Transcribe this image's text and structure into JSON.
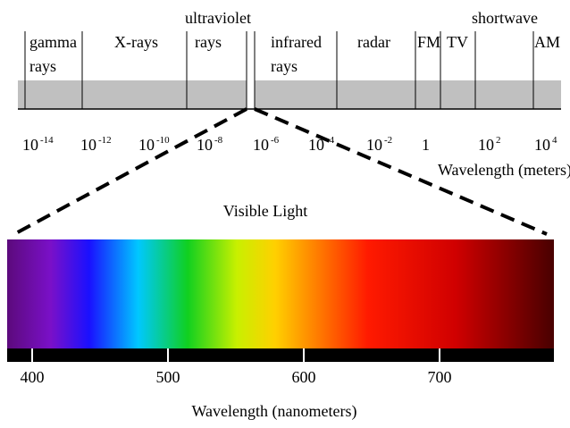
{
  "spectrum": {
    "bands": [
      {
        "lines": [
          "gamma",
          "rays"
        ]
      },
      {
        "lines": [
          "X-rays"
        ]
      },
      {
        "above": "ultraviolet",
        "lines": [
          "rays"
        ]
      },
      {
        "lines": [
          "infrared",
          "rays"
        ]
      },
      {
        "lines": [
          "radar"
        ]
      },
      {
        "lines": [
          "FM"
        ]
      },
      {
        "lines": [
          "TV"
        ]
      },
      {
        "above": "shortwave"
      },
      {
        "lines": [
          "AM"
        ]
      }
    ],
    "meter_ticks": [
      {
        "base": "10",
        "exponent": "-14"
      },
      {
        "base": "10",
        "exponent": "-12"
      },
      {
        "base": "10",
        "exponent": "-10"
      },
      {
        "base": "10",
        "exponent": "-8"
      },
      {
        "base": "10",
        "exponent": "-6"
      },
      {
        "base": "10",
        "exponent": "-4"
      },
      {
        "base": "10",
        "exponent": "-2"
      },
      {
        "base": "1"
      },
      {
        "base": "10",
        "exponent": "2"
      },
      {
        "base": "10",
        "exponent": "4"
      }
    ],
    "meter_axis_label": "Wavelength (meters)"
  },
  "visible": {
    "title": "Visible Light",
    "nm_ticks": [
      400,
      500,
      600,
      700
    ],
    "nm_axis_label": "Wavelength (nanometers)"
  }
}
